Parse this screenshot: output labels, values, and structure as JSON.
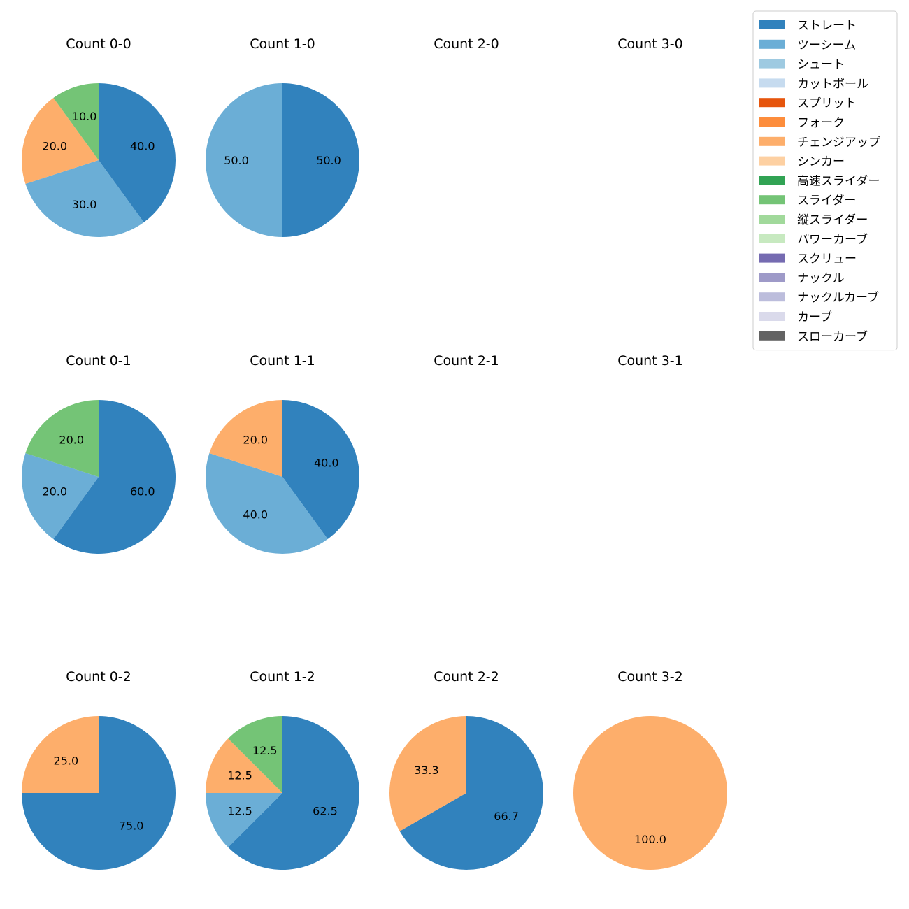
{
  "colors": {
    "ストレート": "#3182bd",
    "ツーシーム": "#6baed6",
    "シュート": "#9ecae1",
    "カットボール": "#c6dbef",
    "スプリット": "#e6550d",
    "フォーク": "#fd8d3c",
    "チェンジアップ": "#fdae6b",
    "シンカー": "#fdd0a2",
    "高速スライダー": "#31a354",
    "スライダー": "#74c476",
    "縦スライダー": "#a1d99b",
    "パワーカーブ": "#c7e9c0",
    "スクリュー": "#756bb1",
    "ナックル": "#9e9ac8",
    "ナックルカーブ": "#bcbddc",
    "カーブ": "#dadaeb",
    "スローカーブ": "#636363"
  },
  "chart_data": {
    "type": "pie",
    "grid": {
      "rows": 3,
      "cols": 4
    },
    "legend": {
      "position": "top-right",
      "entries": [
        "ストレート",
        "ツーシーム",
        "シュート",
        "カットボール",
        "スプリット",
        "フォーク",
        "チェンジアップ",
        "シンカー",
        "高速スライダー",
        "スライダー",
        "縦スライダー",
        "パワーカーブ",
        "スクリュー",
        "ナックル",
        "ナックルカーブ",
        "カーブ",
        "スローカーブ"
      ]
    },
    "charts": [
      {
        "title": "Count 0-0",
        "row": 0,
        "col": 0,
        "slices": [
          {
            "category": "ストレート",
            "value": 40.0,
            "label": "40.0"
          },
          {
            "category": "ツーシーム",
            "value": 30.0,
            "label": "30.0"
          },
          {
            "category": "チェンジアップ",
            "value": 20.0,
            "label": "20.0"
          },
          {
            "category": "スライダー",
            "value": 10.0,
            "label": "10.0"
          }
        ]
      },
      {
        "title": "Count 1-0",
        "row": 0,
        "col": 1,
        "slices": [
          {
            "category": "ストレート",
            "value": 50.0,
            "label": "50.0"
          },
          {
            "category": "ツーシーム",
            "value": 50.0,
            "label": "50.0"
          }
        ]
      },
      {
        "title": "Count 2-0",
        "row": 0,
        "col": 2,
        "slices": []
      },
      {
        "title": "Count 3-0",
        "row": 0,
        "col": 3,
        "slices": []
      },
      {
        "title": "Count 0-1",
        "row": 1,
        "col": 0,
        "slices": [
          {
            "category": "ストレート",
            "value": 60.0,
            "label": "60.0"
          },
          {
            "category": "ツーシーム",
            "value": 20.0,
            "label": "20.0"
          },
          {
            "category": "スライダー",
            "value": 20.0,
            "label": "20.0"
          }
        ]
      },
      {
        "title": "Count 1-1",
        "row": 1,
        "col": 1,
        "slices": [
          {
            "category": "ストレート",
            "value": 40.0,
            "label": "40.0"
          },
          {
            "category": "ツーシーム",
            "value": 40.0,
            "label": "40.0"
          },
          {
            "category": "チェンジアップ",
            "value": 20.0,
            "label": "20.0"
          }
        ]
      },
      {
        "title": "Count 2-1",
        "row": 1,
        "col": 2,
        "slices": []
      },
      {
        "title": "Count 3-1",
        "row": 1,
        "col": 3,
        "slices": []
      },
      {
        "title": "Count 0-2",
        "row": 2,
        "col": 0,
        "slices": [
          {
            "category": "ストレート",
            "value": 75.0,
            "label": "75.0"
          },
          {
            "category": "チェンジアップ",
            "value": 25.0,
            "label": "25.0"
          }
        ]
      },
      {
        "title": "Count 1-2",
        "row": 2,
        "col": 1,
        "slices": [
          {
            "category": "ストレート",
            "value": 62.5,
            "label": "62.5"
          },
          {
            "category": "ツーシーム",
            "value": 12.5,
            "label": "12.5"
          },
          {
            "category": "チェンジアップ",
            "value": 12.5,
            "label": "12.5"
          },
          {
            "category": "スライダー",
            "value": 12.5,
            "label": "12.5"
          }
        ]
      },
      {
        "title": "Count 2-2",
        "row": 2,
        "col": 2,
        "slices": [
          {
            "category": "ストレート",
            "value": 66.7,
            "label": "66.7"
          },
          {
            "category": "チェンジアップ",
            "value": 33.3,
            "label": "33.3"
          }
        ]
      },
      {
        "title": "Count 3-2",
        "row": 2,
        "col": 3,
        "slices": [
          {
            "category": "チェンジアップ",
            "value": 100.0,
            "label": "100.0"
          }
        ]
      }
    ]
  }
}
